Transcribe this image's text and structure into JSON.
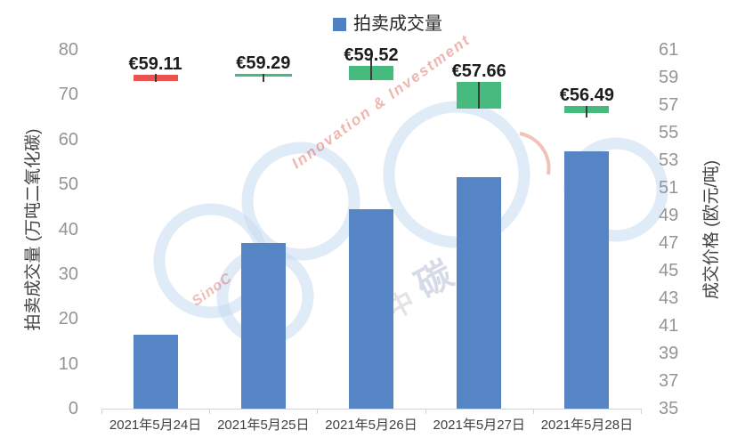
{
  "chart_data": {
    "type": "combo (bar + candlestick)",
    "categories": [
      "2021年5月24日",
      "2021年5月25日",
      "2021年5月26日",
      "2021年5月27日",
      "2021年5月28日"
    ],
    "legend": {
      "label": "拍卖成交量",
      "position": "top",
      "marker_color": "#4f81c0"
    },
    "left_axis": {
      "title": "拍卖成交量 (万吨二氧化碳)",
      "min": 0,
      "max": 80,
      "ticks": [
        80,
        70,
        60,
        50,
        40,
        30,
        20,
        10,
        0
      ]
    },
    "right_axis": {
      "title": "成交价格 (欧元/吨)",
      "min": 35,
      "max": 61,
      "ticks": [
        61,
        59,
        57,
        55,
        53,
        51,
        49,
        47,
        45,
        43,
        41,
        39,
        37,
        35
      ]
    },
    "grid": false,
    "series": [
      {
        "name": "拍卖成交量",
        "chart": "bar",
        "axis": "left",
        "unit": "万吨二氧化碳",
        "color": "#5585c4",
        "values": [
          16.5,
          37,
          44.4,
          51.7,
          57.3
        ]
      },
      {
        "name": "成交价格",
        "chart": "candlestick",
        "axis": "right",
        "unit": "欧元/吨",
        "up_color": "#47bb7e",
        "down_color": "#ea5350",
        "wick_color": "#3b3b3b",
        "points": [
          {
            "label": "€59.11",
            "direction": "down",
            "open": 59.2,
            "close": 58.75,
            "high": 59.25,
            "low": 58.7
          },
          {
            "label": "€59.29",
            "direction": "flat",
            "open": 59.29,
            "close": 59.29,
            "high": 59.29,
            "low": 58.7
          },
          {
            "label": "€59.52",
            "direction": "up",
            "open": 58.8,
            "close": 59.85,
            "high": 60.4,
            "low": 58.8
          },
          {
            "label": "€57.66",
            "direction": "up",
            "open": 56.75,
            "close": 58.7,
            "high": 58.7,
            "low": 56.75
          },
          {
            "label": "€56.49",
            "direction": "up",
            "open": 56.4,
            "close": 56.95,
            "high": 56.95,
            "low": 56.1
          }
        ]
      }
    ]
  },
  "watermark": {
    "innovation_text": "Innovation & Investment",
    "sino_text": "SinoC",
    "carbon_char": "碳",
    "extra_char": "中",
    "ring_color": "#cfdff3",
    "accent_color": "#d84e40"
  },
  "colors": {
    "bar_blue": "#5585c4",
    "candle_red": "#ea5350",
    "candle_green": "#47bb7e",
    "axis_line": "#d4d4d4",
    "tick_text": "#949494",
    "label_text": "#1c1c1c"
  }
}
